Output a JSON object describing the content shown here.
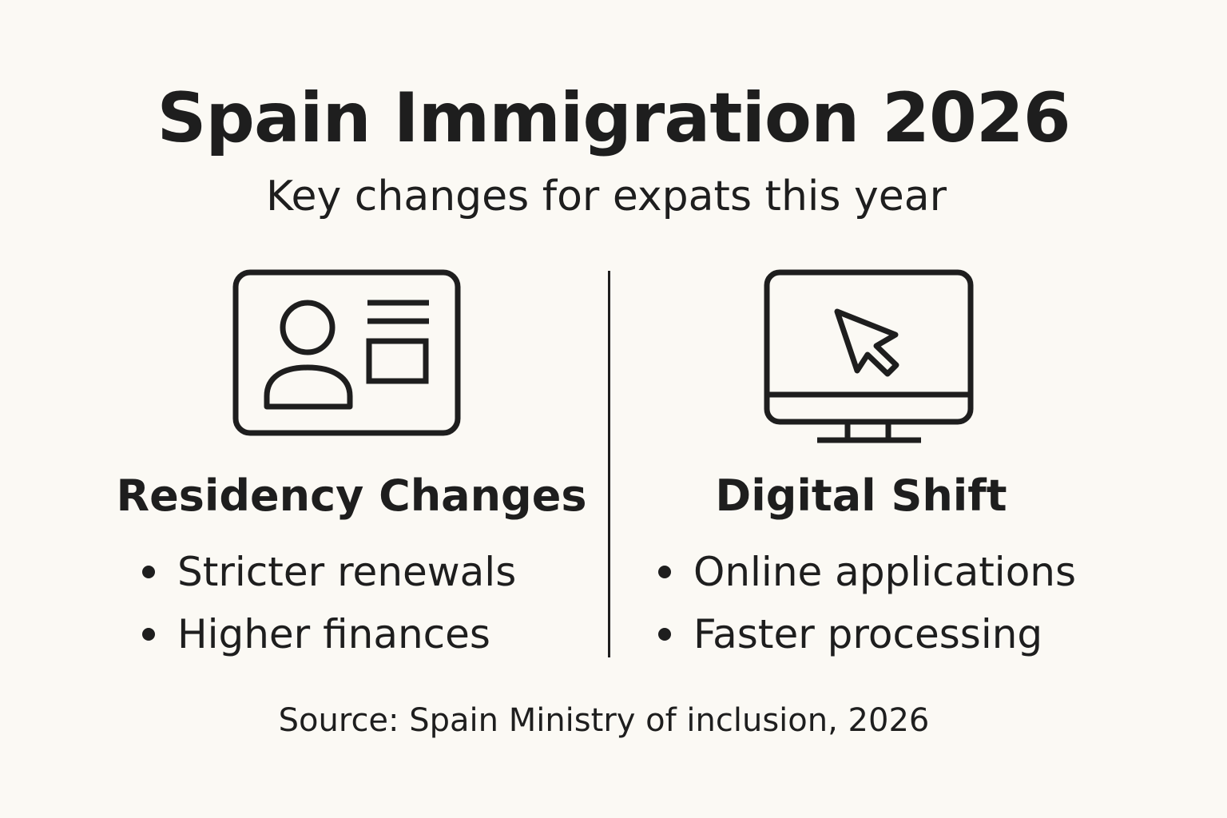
{
  "title": "Spain Immigration 2026",
  "subtitle": "Key changes for expats this year",
  "left_column": {
    "icon": "id-card-icon",
    "heading": "Residency Changes",
    "bullets": [
      "Stricter renewals",
      "Higher finances"
    ]
  },
  "right_column": {
    "icon": "computer-monitor-cursor-icon",
    "heading": "Digital Shift",
    "bullets": [
      "Online applications",
      "Faster processing"
    ]
  },
  "source": "Source: Spain Ministry of inclusion, 2026",
  "colors": {
    "background": "#fbf9f4",
    "ink": "#1e1e1e"
  }
}
